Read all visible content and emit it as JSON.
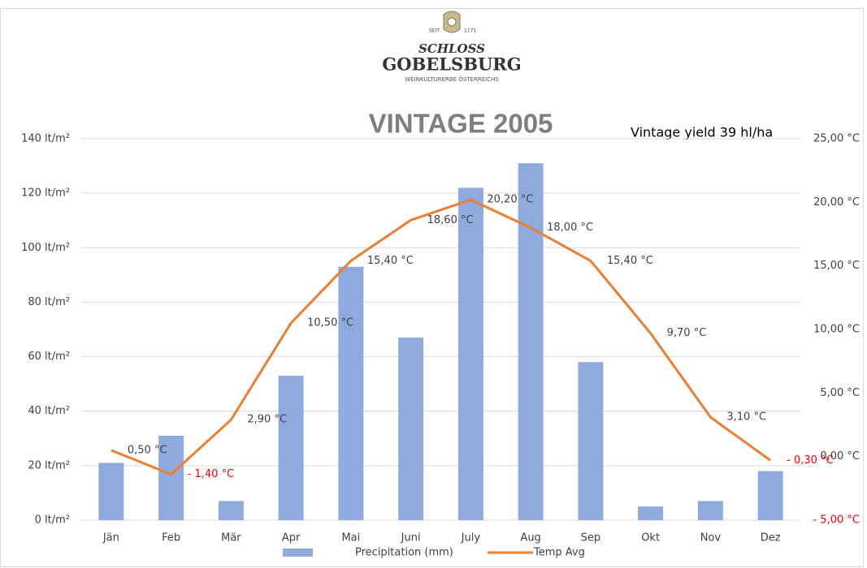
{
  "logo": {
    "since": "SEIT",
    "year": "1171",
    "line1": "SCHLOSS",
    "line2": "GOBELSBURG",
    "tagline": "WEINKULTURERBE ÖSTERREICHS"
  },
  "chart_data": {
    "type": "bar",
    "title": "VINTAGE 2005",
    "annotation": "Vintage yield  39 hl/ha",
    "categories": [
      "Jän",
      "Feb",
      "Mär",
      "Apr",
      "Mai",
      "Juni",
      "July",
      "Aug",
      "Sep",
      "Okt",
      "Nov",
      "Dez"
    ],
    "series": [
      {
        "name": "Precipitation (mm)",
        "type": "bar",
        "color": "#8faadc",
        "values": [
          21,
          31,
          7,
          53,
          93,
          67,
          122,
          131,
          58,
          5,
          7,
          18
        ]
      },
      {
        "name": "Temp Avg",
        "type": "line",
        "axis": "y2",
        "color": "#ed7d31",
        "values": [
          0.5,
          -1.4,
          2.9,
          10.5,
          15.4,
          18.6,
          20.2,
          18.0,
          15.4,
          9.7,
          3.1,
          -0.3
        ],
        "value_labels": [
          "0,50 °C",
          "- 1,40 °C",
          "2,90 °C",
          "10,50 °C",
          "15,40 °C",
          "18,60 °C",
          "20,20 °C",
          "18,00 °C",
          "15,40 °C",
          "9,70 °C",
          "3,10 °C",
          "- 0,30 °C"
        ]
      }
    ],
    "ylim": [
      0,
      140
    ],
    "yticks": [
      {
        "value": 0,
        "label": "0 lt/m²"
      },
      {
        "value": 20,
        "label": "20 lt/m²"
      },
      {
        "value": 40,
        "label": "40 lt/m²"
      },
      {
        "value": 60,
        "label": "60 lt/m²"
      },
      {
        "value": 80,
        "label": "80 lt/m²"
      },
      {
        "value": 100,
        "label": "100 lt/m²"
      },
      {
        "value": 120,
        "label": "120 lt/m²"
      },
      {
        "value": 140,
        "label": "140 lt/m²"
      }
    ],
    "y2lim": [
      -5,
      25
    ],
    "y2ticks": [
      {
        "value": -5,
        "label": "- 5,00 °C"
      },
      {
        "value": 0,
        "label": "0,00 °C"
      },
      {
        "value": 5,
        "label": "5,00 °C"
      },
      {
        "value": 10,
        "label": "10,00 °C"
      },
      {
        "value": 15,
        "label": "15,00 °C"
      },
      {
        "value": 20,
        "label": "20,00 °C"
      },
      {
        "value": 25,
        "label": "25,00 °C"
      }
    ],
    "grid": true,
    "legend": "bottom",
    "negative_label_color": "#ff0000"
  }
}
